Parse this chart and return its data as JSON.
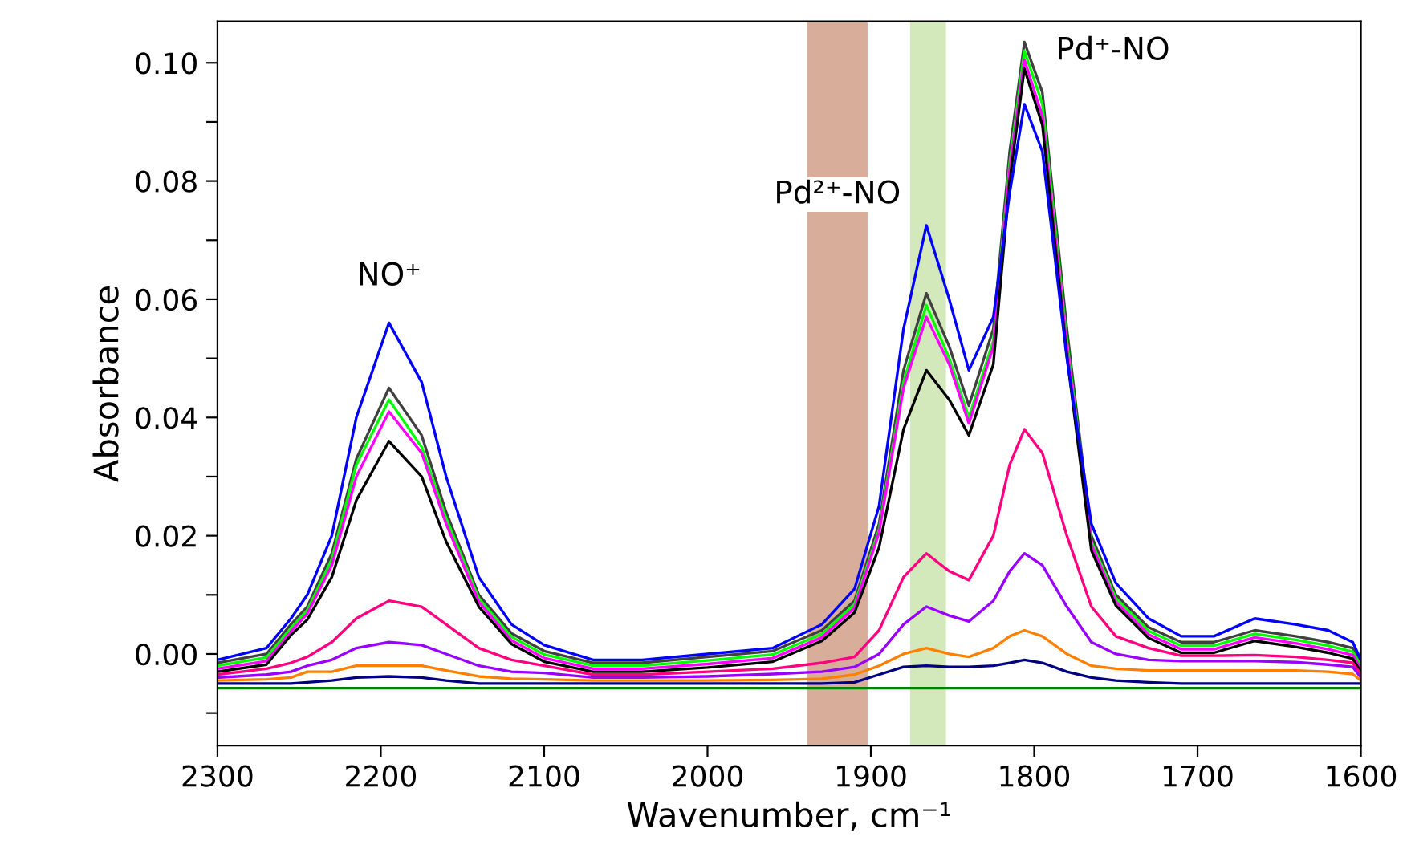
{
  "chart_data": {
    "type": "line",
    "xlabel": "Wavenumber, cm⁻¹",
    "ylabel": "Absorbance",
    "x": [
      2300,
      2270,
      2255,
      2245,
      2230,
      2215,
      2195,
      2175,
      2160,
      2140,
      2120,
      2100,
      2070,
      2040,
      2000,
      1960,
      1930,
      1910,
      1895,
      1880,
      1866,
      1852,
      1840,
      1825,
      1815,
      1806,
      1795,
      1780,
      1765,
      1750,
      1730,
      1710,
      1690,
      1665,
      1640,
      1620,
      1605,
      1600
    ],
    "series": [
      {
        "color": "#404040",
        "values": [
          -0.0015,
          0.0,
          0.005,
          0.008,
          0.017,
          0.033,
          0.045,
          0.037,
          0.024,
          0.01,
          0.0035,
          0.0005,
          -0.0015,
          -0.0015,
          -0.0005,
          0.0005,
          0.004,
          0.009,
          0.022,
          0.048,
          0.061,
          0.052,
          0.042,
          0.055,
          0.085,
          0.1035,
          0.095,
          0.055,
          0.02,
          0.01,
          0.0045,
          0.002,
          0.002,
          0.004,
          0.003,
          0.002,
          0.001,
          -0.0015
        ]
      },
      {
        "color": "#00ff00",
        "values": [
          -0.002,
          -0.0006,
          0.0044,
          0.0074,
          0.016,
          0.032,
          0.043,
          0.035,
          0.023,
          0.0094,
          0.0029,
          -0.0001,
          -0.002,
          -0.002,
          -0.0011,
          -0.0001,
          0.0034,
          0.0084,
          0.021,
          0.046,
          0.059,
          0.05,
          0.04,
          0.053,
          0.083,
          0.102,
          0.093,
          0.053,
          0.019,
          0.0094,
          0.0039,
          0.0014,
          0.0014,
          0.0034,
          0.0024,
          0.0014,
          0.0004,
          -0.002
        ]
      },
      {
        "color": "#ff00ff",
        "values": [
          -0.0025,
          -0.0012,
          0.0038,
          0.0068,
          0.015,
          0.03,
          0.041,
          0.034,
          0.022,
          0.0088,
          0.0023,
          -0.0007,
          -0.0025,
          -0.0025,
          -0.0017,
          -0.0007,
          0.0028,
          0.0078,
          0.0205,
          0.045,
          0.057,
          0.049,
          0.039,
          0.052,
          0.082,
          0.1005,
          0.091,
          0.052,
          0.0185,
          0.0088,
          0.0033,
          0.0008,
          0.0008,
          0.0028,
          0.0018,
          0.0008,
          -0.0002,
          -0.0025
        ]
      },
      {
        "color": "#000000",
        "values": [
          -0.003,
          -0.0018,
          0.0032,
          0.0058,
          0.013,
          0.026,
          0.036,
          0.03,
          0.019,
          0.008,
          0.0017,
          -0.0013,
          -0.003,
          -0.003,
          -0.0023,
          -0.0013,
          0.0022,
          0.007,
          0.018,
          0.038,
          0.048,
          0.043,
          0.037,
          0.049,
          0.08,
          0.099,
          0.0895,
          0.0505,
          0.0175,
          0.0082,
          0.0027,
          0.0002,
          0.0002,
          0.0022,
          0.0012,
          0.0002,
          -0.0008,
          -0.003
        ]
      },
      {
        "color": "#0000ff",
        "values": [
          -0.001,
          0.001,
          0.006,
          0.01,
          0.02,
          0.04,
          0.056,
          0.046,
          0.03,
          0.013,
          0.005,
          0.0015,
          -0.001,
          -0.001,
          0.0,
          0.001,
          0.005,
          0.011,
          0.025,
          0.055,
          0.0725,
          0.06,
          0.048,
          0.057,
          0.078,
          0.093,
          0.085,
          0.05,
          0.022,
          0.012,
          0.006,
          0.003,
          0.003,
          0.006,
          0.005,
          0.004,
          0.002,
          -0.001
        ]
      },
      {
        "color": "#ff0080",
        "values": [
          -0.0035,
          -0.0025,
          -0.0015,
          -0.0005,
          0.002,
          0.006,
          0.009,
          0.008,
          0.005,
          0.001,
          -0.001,
          -0.002,
          -0.0035,
          -0.0035,
          -0.003,
          -0.0025,
          -0.0015,
          -0.0005,
          0.004,
          0.013,
          0.017,
          0.014,
          0.0125,
          0.02,
          0.032,
          0.038,
          0.034,
          0.02,
          0.008,
          0.003,
          0.001,
          -0.0003,
          -0.0003,
          -0.0002,
          -0.0005,
          -0.001,
          -0.0015,
          -0.0035
        ]
      },
      {
        "color": "#9900ff",
        "values": [
          -0.004,
          -0.0035,
          -0.003,
          -0.002,
          -0.001,
          0.001,
          0.002,
          0.0015,
          0.0,
          -0.002,
          -0.003,
          -0.0032,
          -0.004,
          -0.004,
          -0.0038,
          -0.0034,
          -0.003,
          -0.0022,
          0.0,
          0.005,
          0.008,
          0.0065,
          0.0055,
          0.009,
          0.014,
          0.017,
          0.015,
          0.008,
          0.002,
          0.0,
          -0.001,
          -0.0012,
          -0.0012,
          -0.0012,
          -0.0014,
          -0.0018,
          -0.0022,
          -0.004
        ]
      },
      {
        "color": "#ff8000",
        "values": [
          -0.0045,
          -0.0043,
          -0.004,
          -0.003,
          -0.003,
          -0.002,
          -0.002,
          -0.002,
          -0.0028,
          -0.0038,
          -0.0042,
          -0.0043,
          -0.0045,
          -0.0045,
          -0.0045,
          -0.0044,
          -0.0042,
          -0.0035,
          -0.002,
          0.0,
          0.001,
          0.0,
          -0.0005,
          0.001,
          0.003,
          0.004,
          0.003,
          0.0,
          -0.002,
          -0.0025,
          -0.0028,
          -0.0028,
          -0.0028,
          -0.0028,
          -0.0028,
          -0.003,
          -0.0034,
          -0.0045
        ]
      },
      {
        "color": "#000080",
        "values": [
          -0.005,
          -0.005,
          -0.005,
          -0.0048,
          -0.0045,
          -0.004,
          -0.0038,
          -0.004,
          -0.0045,
          -0.005,
          -0.005,
          -0.005,
          -0.005,
          -0.005,
          -0.005,
          -0.005,
          -0.005,
          -0.0048,
          -0.0035,
          -0.0022,
          -0.002,
          -0.0022,
          -0.0022,
          -0.002,
          -0.0015,
          -0.001,
          -0.0015,
          -0.003,
          -0.004,
          -0.0045,
          -0.0048,
          -0.005,
          -0.005,
          -0.005,
          -0.005,
          -0.005,
          -0.005,
          -0.005
        ]
      },
      {
        "color": "#008000",
        "values": [
          -0.0058,
          -0.0058,
          -0.0058,
          -0.0058,
          -0.0058,
          -0.0058,
          -0.0058,
          -0.0058,
          -0.0058,
          -0.0058,
          -0.0058,
          -0.0058,
          -0.0058,
          -0.0058,
          -0.0058,
          -0.0058,
          -0.0058,
          -0.0058,
          -0.0058,
          -0.0058,
          -0.0058,
          -0.0058,
          -0.0058,
          -0.0058,
          -0.0058,
          -0.0058,
          -0.0058,
          -0.0058,
          -0.0058,
          -0.0058,
          -0.0058,
          -0.0058,
          -0.0058,
          -0.0058,
          -0.0058,
          -0.0058,
          -0.0058,
          -0.0058
        ]
      }
    ],
    "xlim": [
      2300,
      1600
    ],
    "xticks": [
      2300,
      2200,
      2100,
      2000,
      1900,
      1800,
      1700,
      1600
    ],
    "ylim": [
      -0.0155,
      0.107
    ],
    "yticks": [
      {
        "value": -0.01,
        "label": null
      },
      {
        "value": 0.0,
        "label": "0.00"
      },
      {
        "value": 0.01,
        "label": null
      },
      {
        "value": 0.02,
        "label": "0.02"
      },
      {
        "value": 0.03,
        "label": null
      },
      {
        "value": 0.04,
        "label": "0.04"
      },
      {
        "value": 0.05,
        "label": null
      },
      {
        "value": 0.06,
        "label": "0.06"
      },
      {
        "value": 0.07,
        "label": null
      },
      {
        "value": 0.08,
        "label": "0.08"
      },
      {
        "value": 0.09,
        "label": null
      },
      {
        "value": 0.1,
        "label": "0.10"
      }
    ],
    "bands": [
      {
        "axis": "x",
        "from": 1939,
        "to": 1902,
        "color": "#d8ae9a",
        "label": "Pd²⁺-NO"
      },
      {
        "axis": "x",
        "from": 1876,
        "to": 1854,
        "color": "#d3e9bb"
      }
    ],
    "annotations": [
      {
        "text": "NO⁺",
        "x": 2195,
        "y": 0.056
      },
      {
        "text": "Pd⁺-NO",
        "x": 1806,
        "y": 0.1035
      }
    ],
    "grid": false,
    "legend": false,
    "marker": "none",
    "line_style": "solid"
  }
}
